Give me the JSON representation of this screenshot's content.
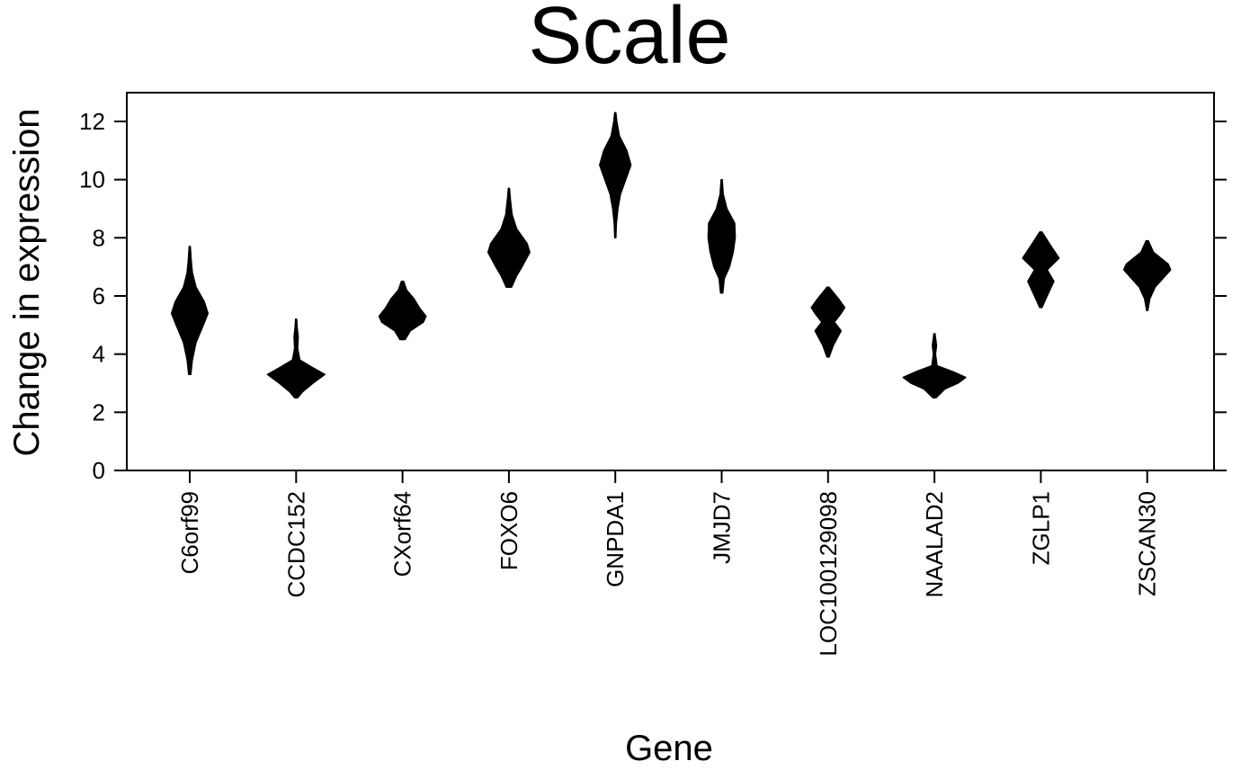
{
  "chart_data": {
    "type": "violin",
    "title": "Scale",
    "xlabel": "Gene",
    "ylabel": "Change in expression",
    "ylim": [
      0,
      13
    ],
    "yticks": [
      0,
      2,
      4,
      6,
      8,
      10,
      12
    ],
    "grid": false,
    "legend": "none",
    "color": "#000000",
    "categories": [
      "C6orf99",
      "CCDC152",
      "CXorf64",
      "FOXO6",
      "GNPDA1",
      "JMJD7",
      "LOC100129098",
      "NAALAD2",
      "ZGLP1",
      "ZSCAN30"
    ],
    "violins": [
      {
        "category": "C6orf99",
        "min": 3.3,
        "max": 7.7,
        "profile": [
          [
            3.3,
            0.02
          ],
          [
            3.8,
            0.05
          ],
          [
            4.4,
            0.12
          ],
          [
            5.0,
            0.26
          ],
          [
            5.4,
            0.35
          ],
          [
            5.8,
            0.28
          ],
          [
            6.3,
            0.12
          ],
          [
            6.8,
            0.05
          ],
          [
            7.2,
            0.03
          ],
          [
            7.7,
            0.01
          ]
        ]
      },
      {
        "category": "CCDC152",
        "min": 2.5,
        "max": 5.2,
        "profile": [
          [
            2.5,
            0.03
          ],
          [
            2.7,
            0.12
          ],
          [
            3.0,
            0.32
          ],
          [
            3.3,
            0.55
          ],
          [
            3.55,
            0.3
          ],
          [
            3.8,
            0.07
          ],
          [
            4.2,
            0.03
          ],
          [
            4.6,
            0.04
          ],
          [
            4.9,
            0.02
          ],
          [
            5.2,
            0.01
          ]
        ]
      },
      {
        "category": "CXorf64",
        "min": 4.5,
        "max": 6.5,
        "profile": [
          [
            4.5,
            0.05
          ],
          [
            4.8,
            0.15
          ],
          [
            5.1,
            0.4
          ],
          [
            5.3,
            0.45
          ],
          [
            5.6,
            0.32
          ],
          [
            5.9,
            0.22
          ],
          [
            6.2,
            0.08
          ],
          [
            6.5,
            0.02
          ]
        ]
      },
      {
        "category": "FOXO6",
        "min": 6.3,
        "max": 9.7,
        "profile": [
          [
            6.3,
            0.05
          ],
          [
            6.7,
            0.15
          ],
          [
            7.0,
            0.25
          ],
          [
            7.5,
            0.4
          ],
          [
            7.8,
            0.35
          ],
          [
            8.3,
            0.15
          ],
          [
            8.8,
            0.06
          ],
          [
            9.3,
            0.03
          ],
          [
            9.7,
            0.01
          ]
        ]
      },
      {
        "category": "GNPDA1",
        "min": 8.0,
        "max": 12.3,
        "profile": [
          [
            8.0,
            0.01
          ],
          [
            8.5,
            0.02
          ],
          [
            9.0,
            0.05
          ],
          [
            9.5,
            0.1
          ],
          [
            10.0,
            0.2
          ],
          [
            10.5,
            0.3
          ],
          [
            11.0,
            0.22
          ],
          [
            11.5,
            0.08
          ],
          [
            12.0,
            0.03
          ],
          [
            12.3,
            0.01
          ]
        ]
      },
      {
        "category": "JMJD7",
        "min": 6.1,
        "max": 10.0,
        "profile": [
          [
            6.1,
            0.02
          ],
          [
            6.6,
            0.05
          ],
          [
            7.0,
            0.15
          ],
          [
            7.5,
            0.22
          ],
          [
            8.0,
            0.26
          ],
          [
            8.5,
            0.25
          ],
          [
            9.0,
            0.1
          ],
          [
            9.5,
            0.03
          ],
          [
            10.0,
            0.01
          ]
        ]
      },
      {
        "category": "LOC100129098",
        "min": 3.9,
        "max": 6.3,
        "profile": [
          [
            3.9,
            0.02
          ],
          [
            4.3,
            0.1
          ],
          [
            4.8,
            0.25
          ],
          [
            5.1,
            0.12
          ],
          [
            5.4,
            0.25
          ],
          [
            5.6,
            0.32
          ],
          [
            5.9,
            0.2
          ],
          [
            6.3,
            0.02
          ]
        ]
      },
      {
        "category": "NAALAD2",
        "min": 2.5,
        "max": 4.7,
        "profile": [
          [
            2.5,
            0.03
          ],
          [
            2.8,
            0.2
          ],
          [
            3.0,
            0.45
          ],
          [
            3.2,
            0.6
          ],
          [
            3.4,
            0.35
          ],
          [
            3.6,
            0.05
          ],
          [
            4.0,
            0.02
          ],
          [
            4.3,
            0.04
          ],
          [
            4.7,
            0.01
          ]
        ]
      },
      {
        "category": "ZGLP1",
        "min": 5.6,
        "max": 8.2,
        "profile": [
          [
            5.6,
            0.02
          ],
          [
            6.0,
            0.12
          ],
          [
            6.5,
            0.25
          ],
          [
            6.9,
            0.12
          ],
          [
            7.3,
            0.35
          ],
          [
            7.7,
            0.2
          ],
          [
            8.2,
            0.02
          ]
        ]
      },
      {
        "category": "ZSCAN30",
        "min": 5.5,
        "max": 7.9,
        "profile": [
          [
            5.5,
            0.01
          ],
          [
            5.9,
            0.05
          ],
          [
            6.3,
            0.15
          ],
          [
            6.6,
            0.3
          ],
          [
            6.9,
            0.45
          ],
          [
            7.1,
            0.4
          ],
          [
            7.5,
            0.12
          ],
          [
            7.9,
            0.02
          ]
        ]
      }
    ]
  }
}
